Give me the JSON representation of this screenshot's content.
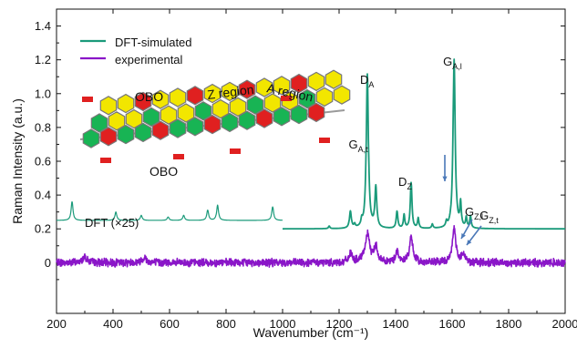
{
  "colors": {
    "dft": "#1a9a7a",
    "experimental": "#8a16c8",
    "annotation_arrow": "#4a78b8",
    "red": "#e02020",
    "green": "#18b454",
    "yellow": "#f2e600",
    "bond": "#9a9a9a"
  },
  "chart_data": {
    "type": "line",
    "xlabel": "Wavenumber (cm⁻¹)",
    "ylabel": "Raman Intensity (a.u.)",
    "xlim": [
      200,
      2000
    ],
    "ylim": [
      -0.3,
      1.5
    ],
    "xticks": [
      200,
      400,
      600,
      800,
      1000,
      1200,
      1400,
      1600,
      1800,
      2000
    ],
    "yticks": [
      0,
      0.2,
      0.4,
      0.6,
      0.8,
      1.0,
      1.2,
      1.4
    ],
    "ytick_labels": [
      "0",
      "0.2",
      "0.4",
      "0.6",
      "0.8",
      "1.0",
      "1.2",
      "1.4"
    ],
    "grid": false,
    "legend": {
      "placement": "top-left",
      "entries": [
        "DFT-simulated",
        "experimental"
      ]
    },
    "series": [
      {
        "name": "DFT-simulated",
        "baseline": 0.2,
        "x_range": [
          1000,
          2000
        ],
        "peaks": [
          {
            "x": 1165,
            "y": 0.215,
            "w": 3
          },
          {
            "x": 1240,
            "y": 0.3,
            "w": 4
          },
          {
            "x": 1255,
            "y": 0.22,
            "w": 3
          },
          {
            "x": 1280,
            "y": 0.235,
            "w": 3
          },
          {
            "x": 1300,
            "y": 1.11,
            "w": 4.5
          },
          {
            "x": 1330,
            "y": 0.44,
            "w": 4
          },
          {
            "x": 1405,
            "y": 0.3,
            "w": 3.5
          },
          {
            "x": 1430,
            "y": 0.28,
            "w": 3
          },
          {
            "x": 1455,
            "y": 0.47,
            "w": 3.5
          },
          {
            "x": 1480,
            "y": 0.26,
            "w": 3
          },
          {
            "x": 1530,
            "y": 0.225,
            "w": 3
          },
          {
            "x": 1580,
            "y": 0.23,
            "w": 3
          },
          {
            "x": 1607,
            "y": 1.2,
            "w": 4.5
          },
          {
            "x": 1630,
            "y": 0.34,
            "w": 3
          },
          {
            "x": 1650,
            "y": 0.26,
            "w": 3
          },
          {
            "x": 1665,
            "y": 0.27,
            "w": 3
          }
        ]
      },
      {
        "name": "DFT (×25)",
        "baseline": 0.25,
        "x_range": [
          200,
          1000
        ],
        "peaks": [
          {
            "x": 255,
            "y": 0.36,
            "w": 4
          },
          {
            "x": 410,
            "y": 0.3,
            "w": 4
          },
          {
            "x": 500,
            "y": 0.28,
            "w": 4
          },
          {
            "x": 595,
            "y": 0.27,
            "w": 4
          },
          {
            "x": 650,
            "y": 0.28,
            "w": 4
          },
          {
            "x": 735,
            "y": 0.31,
            "w": 4
          },
          {
            "x": 770,
            "y": 0.34,
            "w": 4
          },
          {
            "x": 965,
            "y": 0.33,
            "w": 4
          }
        ]
      },
      {
        "name": "experimental",
        "baseline": 0.0,
        "noise": 0.018,
        "x_range": [
          200,
          2000
        ],
        "peaks": [
          {
            "x": 300,
            "y": 0.04,
            "w": 8
          },
          {
            "x": 510,
            "y": 0.03,
            "w": 10
          },
          {
            "x": 1240,
            "y": 0.05,
            "w": 8
          },
          {
            "x": 1300,
            "y": 0.16,
            "w": 10
          },
          {
            "x": 1330,
            "y": 0.09,
            "w": 8
          },
          {
            "x": 1405,
            "y": 0.07,
            "w": 6
          },
          {
            "x": 1455,
            "y": 0.14,
            "w": 8
          },
          {
            "x": 1607,
            "y": 0.21,
            "w": 7
          },
          {
            "x": 1640,
            "y": 0.06,
            "w": 6
          }
        ]
      }
    ],
    "peak_labels": [
      {
        "label": "D",
        "sub": "A",
        "x": 1300
      },
      {
        "label": "D",
        "sub": "Z",
        "x": 1455
      },
      {
        "label": "G",
        "sub": "A,l",
        "x": 1607
      },
      {
        "label": "G",
        "sub": "A,t",
        "x": 1595
      },
      {
        "label": "G",
        "sub": "Z,l",
        "x": 1645
      },
      {
        "label": "G",
        "sub": "Z,t",
        "x": 1665
      }
    ],
    "annotations": {
      "dft_scale": "DFT (×25)",
      "obo_top": "OBO",
      "obo_bottom": "OBO",
      "z_region": "Z region",
      "a_region": "A region"
    }
  }
}
